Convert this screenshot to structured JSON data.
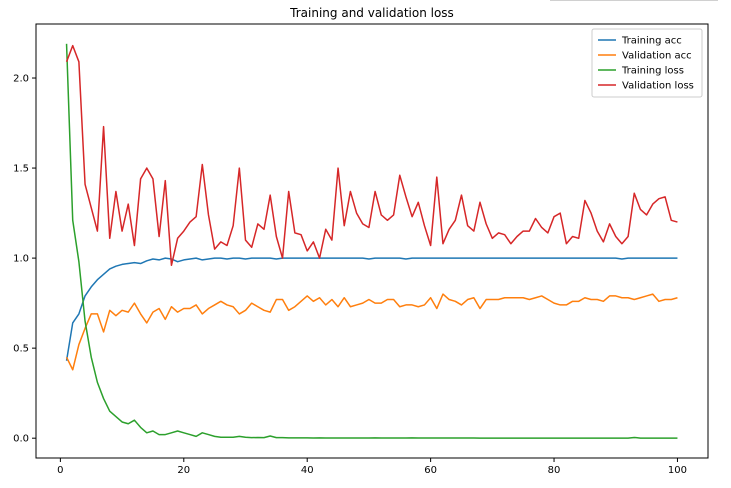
{
  "chart_data": {
    "type": "line",
    "title": "Training and validation loss",
    "xlabel": "",
    "ylabel": "",
    "xlim": [
      -3.95,
      104.95
    ],
    "ylim": [
      -0.11,
      2.3
    ],
    "xticks": [
      0,
      20,
      40,
      60,
      80,
      100
    ],
    "yticks": [
      0.0,
      0.5,
      1.0,
      1.5,
      2.0
    ],
    "xtick_labels": [
      "0",
      "20",
      "40",
      "60",
      "80",
      "100"
    ],
    "ytick_labels": [
      "0.0",
      "0.5",
      "1.0",
      "1.5",
      "2.0"
    ],
    "grid": false,
    "legend_position": "upper-right",
    "series": [
      {
        "name": "Training acc",
        "color": "#1f77b4",
        "x": [
          1,
          2,
          3,
          4,
          5,
          6,
          7,
          8,
          9,
          10,
          11,
          12,
          13,
          14,
          15,
          16,
          17,
          18,
          19,
          20,
          21,
          22,
          23,
          24,
          25,
          26,
          27,
          28,
          29,
          30,
          31,
          32,
          33,
          34,
          35,
          36,
          37,
          38,
          39,
          40,
          41,
          42,
          43,
          44,
          45,
          46,
          47,
          48,
          49,
          50,
          51,
          52,
          53,
          54,
          55,
          56,
          57,
          58,
          59,
          60,
          61,
          62,
          63,
          64,
          65,
          66,
          67,
          68,
          69,
          70,
          71,
          72,
          73,
          74,
          75,
          76,
          77,
          78,
          79,
          80,
          81,
          82,
          83,
          84,
          85,
          86,
          87,
          88,
          89,
          90,
          91,
          92,
          93,
          94,
          95,
          96,
          97,
          98,
          99,
          100
        ],
        "values": [
          0.43,
          0.64,
          0.69,
          0.79,
          0.84,
          0.88,
          0.91,
          0.94,
          0.955,
          0.965,
          0.97,
          0.975,
          0.97,
          0.985,
          0.995,
          0.99,
          1.0,
          0.995,
          0.98,
          0.99,
          0.995,
          1.0,
          0.99,
          0.995,
          1.0,
          1.0,
          0.995,
          1.0,
          1.0,
          0.995,
          1.0,
          1.0,
          1.0,
          1.0,
          0.995,
          1.0,
          1.0,
          1.0,
          1.0,
          1.0,
          1.0,
          1.0,
          1.0,
          1.0,
          1.0,
          1.0,
          1.0,
          1.0,
          1.0,
          0.995,
          1.0,
          1.0,
          1.0,
          1.0,
          1.0,
          0.995,
          1.0,
          1.0,
          1.0,
          1.0,
          1.0,
          1.0,
          1.0,
          1.0,
          1.0,
          1.0,
          1.0,
          1.0,
          1.0,
          1.0,
          1.0,
          1.0,
          1.0,
          1.0,
          1.0,
          1.0,
          1.0,
          1.0,
          1.0,
          1.0,
          1.0,
          1.0,
          1.0,
          1.0,
          1.0,
          1.0,
          1.0,
          1.0,
          1.0,
          1.0,
          0.995,
          1.0,
          1.0,
          1.0,
          1.0,
          1.0,
          1.0,
          1.0,
          1.0,
          1.0
        ]
      },
      {
        "name": "Validation acc",
        "color": "#ff7f0e",
        "x": [
          1,
          2,
          3,
          4,
          5,
          6,
          7,
          8,
          9,
          10,
          11,
          12,
          13,
          14,
          15,
          16,
          17,
          18,
          19,
          20,
          21,
          22,
          23,
          24,
          25,
          26,
          27,
          28,
          29,
          30,
          31,
          32,
          33,
          34,
          35,
          36,
          37,
          38,
          39,
          40,
          41,
          42,
          43,
          44,
          45,
          46,
          47,
          48,
          49,
          50,
          51,
          52,
          53,
          54,
          55,
          56,
          57,
          58,
          59,
          60,
          61,
          62,
          63,
          64,
          65,
          66,
          67,
          68,
          69,
          70,
          71,
          72,
          73,
          74,
          75,
          76,
          77,
          78,
          79,
          80,
          81,
          82,
          83,
          84,
          85,
          86,
          87,
          88,
          89,
          90,
          91,
          92,
          93,
          94,
          95,
          96,
          97,
          98,
          99,
          100
        ],
        "values": [
          0.45,
          0.38,
          0.52,
          0.61,
          0.69,
          0.69,
          0.59,
          0.71,
          0.68,
          0.71,
          0.7,
          0.75,
          0.69,
          0.64,
          0.7,
          0.72,
          0.66,
          0.73,
          0.7,
          0.72,
          0.72,
          0.74,
          0.69,
          0.72,
          0.74,
          0.76,
          0.74,
          0.73,
          0.69,
          0.71,
          0.75,
          0.73,
          0.71,
          0.7,
          0.77,
          0.77,
          0.71,
          0.73,
          0.76,
          0.79,
          0.76,
          0.78,
          0.74,
          0.77,
          0.73,
          0.78,
          0.73,
          0.74,
          0.75,
          0.77,
          0.75,
          0.75,
          0.77,
          0.77,
          0.73,
          0.74,
          0.74,
          0.73,
          0.74,
          0.78,
          0.72,
          0.8,
          0.77,
          0.76,
          0.74,
          0.77,
          0.78,
          0.72,
          0.77,
          0.77,
          0.77,
          0.78,
          0.78,
          0.78,
          0.78,
          0.77,
          0.78,
          0.79,
          0.77,
          0.75,
          0.74,
          0.74,
          0.76,
          0.76,
          0.78,
          0.77,
          0.77,
          0.76,
          0.79,
          0.79,
          0.78,
          0.78,
          0.77,
          0.78,
          0.79,
          0.8,
          0.76,
          0.77,
          0.77,
          0.78
        ]
      },
      {
        "name": "Training loss",
        "color": "#2ca02c",
        "x": [
          1,
          2,
          3,
          4,
          5,
          6,
          7,
          8,
          9,
          10,
          11,
          12,
          13,
          14,
          15,
          16,
          17,
          18,
          19,
          20,
          21,
          22,
          23,
          24,
          25,
          26,
          27,
          28,
          29,
          30,
          31,
          32,
          33,
          34,
          35,
          36,
          37,
          38,
          39,
          40,
          41,
          42,
          43,
          44,
          45,
          46,
          47,
          48,
          49,
          50,
          51,
          52,
          53,
          54,
          55,
          56,
          57,
          58,
          59,
          60,
          61,
          62,
          63,
          64,
          65,
          66,
          67,
          68,
          69,
          70,
          71,
          72,
          73,
          74,
          75,
          76,
          77,
          78,
          79,
          80,
          81,
          82,
          83,
          84,
          85,
          86,
          87,
          88,
          89,
          90,
          91,
          92,
          93,
          94,
          95,
          96,
          97,
          98,
          99,
          100
        ],
        "values": [
          2.19,
          1.21,
          0.98,
          0.65,
          0.45,
          0.31,
          0.22,
          0.15,
          0.12,
          0.09,
          0.08,
          0.1,
          0.06,
          0.03,
          0.04,
          0.02,
          0.02,
          0.03,
          0.04,
          0.03,
          0.02,
          0.01,
          0.03,
          0.02,
          0.01,
          0.005,
          0.005,
          0.005,
          0.01,
          0.005,
          0.003,
          0.004,
          0.003,
          0.012,
          0.003,
          0.003,
          0.002,
          0.002,
          0.002,
          0.002,
          0.001,
          0.002,
          0.001,
          0.001,
          0.001,
          0.001,
          0.001,
          0.001,
          0.001,
          0.001,
          0.002,
          0.001,
          0.001,
          0.001,
          0.001,
          0.001,
          0.002,
          0.001,
          0.001,
          0.001,
          0.001,
          0.001,
          0.001,
          0.001,
          0.001,
          0.001,
          0.001,
          0.0005,
          0.0005,
          0.0005,
          0.0005,
          0.0005,
          0.0005,
          0.0005,
          0.0005,
          0.0005,
          0.0005,
          0.0005,
          0.0005,
          0.0005,
          0.0005,
          0.0005,
          0.0005,
          0.0005,
          0.0005,
          0.0005,
          0.0005,
          0.0005,
          0.0005,
          0.0005,
          0.0005,
          0.0005,
          0.004,
          0.0005,
          0.0005,
          0.0005,
          0.0005,
          0.0005,
          0.0005,
          0.0005
        ]
      },
      {
        "name": "Validation loss",
        "color": "#d62728",
        "x": [
          1,
          2,
          3,
          4,
          5,
          6,
          7,
          8,
          9,
          10,
          11,
          12,
          13,
          14,
          15,
          16,
          17,
          18,
          19,
          20,
          21,
          22,
          23,
          24,
          25,
          26,
          27,
          28,
          29,
          30,
          31,
          32,
          33,
          34,
          35,
          36,
          37,
          38,
          39,
          40,
          41,
          42,
          43,
          44,
          45,
          46,
          47,
          48,
          49,
          50,
          51,
          52,
          53,
          54,
          55,
          56,
          57,
          58,
          59,
          60,
          61,
          62,
          63,
          64,
          65,
          66,
          67,
          68,
          69,
          70,
          71,
          72,
          73,
          74,
          75,
          76,
          77,
          78,
          79,
          80,
          81,
          82,
          83,
          84,
          85,
          86,
          87,
          88,
          89,
          90,
          91,
          92,
          93,
          94,
          95,
          96,
          97,
          98,
          99,
          100
        ],
        "values": [
          2.09,
          2.18,
          2.09,
          1.41,
          1.28,
          1.15,
          1.73,
          1.11,
          1.37,
          1.15,
          1.3,
          1.07,
          1.44,
          1.5,
          1.44,
          1.12,
          1.43,
          0.96,
          1.11,
          1.15,
          1.2,
          1.23,
          1.52,
          1.24,
          1.05,
          1.09,
          1.07,
          1.18,
          1.5,
          1.1,
          1.06,
          1.19,
          1.16,
          1.35,
          1.12,
          1.0,
          1.37,
          1.14,
          1.13,
          1.04,
          1.09,
          1.0,
          1.16,
          1.1,
          1.5,
          1.18,
          1.37,
          1.25,
          1.19,
          1.17,
          1.37,
          1.24,
          1.21,
          1.24,
          1.46,
          1.34,
          1.23,
          1.31,
          1.18,
          1.07,
          1.45,
          1.08,
          1.16,
          1.21,
          1.35,
          1.18,
          1.15,
          1.31,
          1.19,
          1.11,
          1.14,
          1.13,
          1.08,
          1.12,
          1.15,
          1.15,
          1.22,
          1.17,
          1.14,
          1.23,
          1.25,
          1.08,
          1.12,
          1.11,
          1.32,
          1.25,
          1.15,
          1.09,
          1.19,
          1.12,
          1.08,
          1.12,
          1.36,
          1.27,
          1.24,
          1.3,
          1.33,
          1.34,
          1.21,
          1.2
        ]
      }
    ]
  }
}
